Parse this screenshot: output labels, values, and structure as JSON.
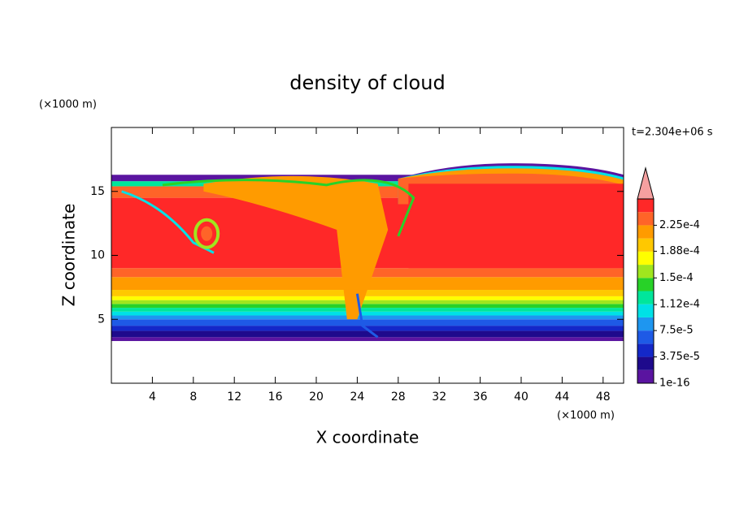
{
  "chart_data": {
    "type": "contour",
    "title": "density of cloud",
    "xlabel": "X coordinate",
    "ylabel": "Z coordinate",
    "xunit": "(×1000 m)",
    "yunit": "(×1000 m)",
    "annotation": "t=2.304e+06 s",
    "xlim": [
      0,
      50
    ],
    "xticks": [
      4,
      8,
      12,
      16,
      20,
      24,
      28,
      32,
      36,
      40,
      44,
      48
    ],
    "ylim": [
      0,
      20
    ],
    "yticks": [
      5,
      10,
      15
    ],
    "colorbar": {
      "clim": [
        0,
        0.0002625
      ],
      "colors": [
        "#5a14a0",
        "#1e0a8c",
        "#1428c8",
        "#1e5ae6",
        "#1e96f0",
        "#00e1e6",
        "#00e69b",
        "#28d228",
        "#a0e61e",
        "#ffff00",
        "#ffc800",
        "#ff9b00",
        "#ff6428",
        "#ff2828"
      ],
      "extend_color": "#f5a0a0",
      "ticks": [
        {
          "value": 1e-16,
          "label": "1e-16"
        },
        {
          "value": 3.75e-05,
          "label": "3.75e-5"
        },
        {
          "value": 7.5e-05,
          "label": "7.5e-5"
        },
        {
          "value": 0.000112,
          "label": "1.12e-4"
        },
        {
          "value": 0.00015,
          "label": "1.5e-4"
        },
        {
          "value": 0.000188,
          "label": "1.88e-4"
        },
        {
          "value": 0.000225,
          "label": "2.25e-4"
        }
      ]
    }
  }
}
